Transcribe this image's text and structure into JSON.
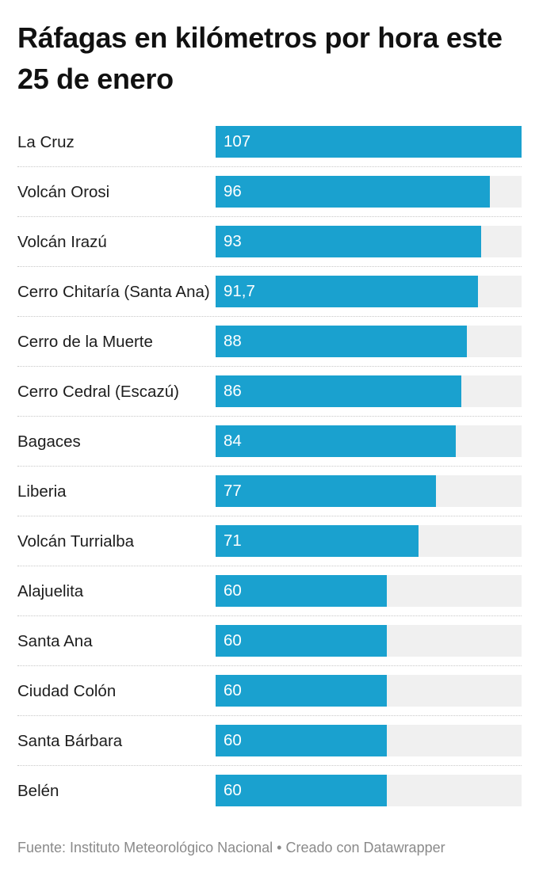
{
  "chart_data": {
    "type": "bar",
    "orientation": "horizontal",
    "title": "Ráfagas en kilómetros por hora este 25 de enero",
    "categories": [
      "La Cruz",
      "Volcán Orosi",
      "Volcán Irazú",
      "Cerro Chitaría (Santa Ana)",
      "Cerro de la Muerte",
      "Cerro Cedral (Escazú)",
      "Bagaces",
      "Liberia",
      "Volcán Turrialba",
      "Alajuelita",
      "Santa Ana",
      "Ciudad Colón",
      "Santa Bárbara",
      "Belén"
    ],
    "values": [
      107,
      96,
      93,
      91.7,
      88,
      86,
      84,
      77,
      71,
      60,
      60,
      60,
      60,
      60
    ],
    "value_labels": [
      "107",
      "96",
      "93",
      "91,7",
      "88",
      "86",
      "84",
      "77",
      "71",
      "60",
      "60",
      "60",
      "60",
      "60"
    ],
    "color": "#1aa1cf",
    "source": "Fuente: Instituto Meteorológico Nacional • Creado con Datawrapper"
  }
}
